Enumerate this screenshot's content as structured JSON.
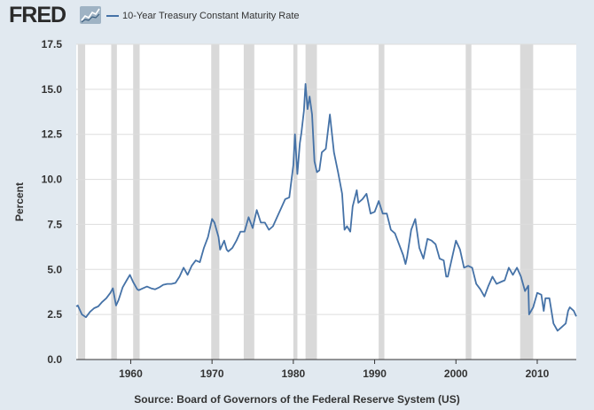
{
  "header": {
    "logo_text": "FRED",
    "logo_icon": "fred-chart-logo-icon",
    "legend_label": "10-Year Treasury Constant Maturity Rate"
  },
  "footer": {
    "source": "Source: Board of Governors of the Federal Reserve System (US)"
  },
  "colors": {
    "line": "#4572a7",
    "recession": "#d9d9d9",
    "plot_bg": "#ffffff",
    "page_bg": "#e1e9f0",
    "grid": "#dddddd"
  },
  "chart_data": {
    "type": "line",
    "title": "10-Year Treasury Constant Maturity Rate",
    "xlabel": "",
    "ylabel": "Percent",
    "xlim": [
      1953.3,
      2014.8
    ],
    "ylim": [
      0,
      17.5
    ],
    "x_ticks": [
      1960,
      1970,
      1980,
      1990,
      2000,
      2010
    ],
    "y_ticks": [
      0.0,
      2.5,
      5.0,
      7.5,
      10.0,
      12.5,
      15.0,
      17.5
    ],
    "y_tick_labels": [
      "0.0",
      "2.5",
      "5.0",
      "7.5",
      "10.0",
      "12.5",
      "15.0",
      "17.5"
    ],
    "grid": "horizontal",
    "legend": "top-left",
    "recessions": [
      [
        1953.5,
        1954.4
      ],
      [
        1957.6,
        1958.3
      ],
      [
        1960.3,
        1961.1
      ],
      [
        1969.9,
        1970.9
      ],
      [
        1973.9,
        1975.2
      ],
      [
        1980.0,
        1980.5
      ],
      [
        1981.5,
        1982.9
      ],
      [
        1990.5,
        1991.2
      ],
      [
        2001.2,
        2001.9
      ],
      [
        2007.9,
        2009.5
      ]
    ],
    "series": [
      {
        "name": "10-Year Treasury Constant Maturity Rate",
        "x": [
          1953.3,
          1953.5,
          1954.0,
          1954.5,
          1955.0,
          1955.5,
          1956.0,
          1956.5,
          1957.0,
          1957.5,
          1957.8,
          1958.2,
          1958.5,
          1959.0,
          1959.5,
          1959.9,
          1960.3,
          1960.8,
          1961.0,
          1961.5,
          1962.0,
          1962.5,
          1963.0,
          1963.5,
          1964.0,
          1964.5,
          1965.0,
          1965.5,
          1966.0,
          1966.5,
          1967.0,
          1967.5,
          1968.0,
          1968.5,
          1969.0,
          1969.5,
          1970.0,
          1970.3,
          1970.8,
          1971.0,
          1971.5,
          1971.8,
          1972.0,
          1972.5,
          1973.0,
          1973.5,
          1974.0,
          1974.5,
          1975.0,
          1975.5,
          1976.0,
          1976.5,
          1977.0,
          1977.5,
          1978.0,
          1978.5,
          1979.0,
          1979.5,
          1980.0,
          1980.2,
          1980.5,
          1980.8,
          1981.0,
          1981.3,
          1981.5,
          1981.75,
          1982.0,
          1982.3,
          1982.6,
          1982.9,
          1983.2,
          1983.5,
          1984.0,
          1984.5,
          1985.0,
          1985.5,
          1986.0,
          1986.3,
          1986.6,
          1987.0,
          1987.3,
          1987.8,
          1988.0,
          1988.5,
          1989.0,
          1989.5,
          1990.0,
          1990.5,
          1991.0,
          1991.5,
          1992.0,
          1992.5,
          1993.0,
          1993.5,
          1993.8,
          1994.0,
          1994.5,
          1995.0,
          1995.5,
          1996.0,
          1996.5,
          1997.0,
          1997.5,
          1998.0,
          1998.5,
          1998.8,
          1999.0,
          1999.5,
          2000.0,
          2000.5,
          2001.0,
          2001.5,
          2002.0,
          2002.5,
          2003.0,
          2003.5,
          2004.0,
          2004.5,
          2005.0,
          2005.5,
          2006.0,
          2006.5,
          2007.0,
          2007.5,
          2008.0,
          2008.5,
          2008.9,
          2009.0,
          2009.5,
          2010.0,
          2010.5,
          2010.8,
          2011.0,
          2011.5,
          2012.0,
          2012.5,
          2013.0,
          2013.5,
          2013.8,
          2014.0,
          2014.5,
          2014.8
        ],
        "values": [
          2.95,
          3.0,
          2.5,
          2.35,
          2.65,
          2.85,
          2.95,
          3.2,
          3.4,
          3.7,
          3.95,
          3.0,
          3.3,
          4.0,
          4.4,
          4.7,
          4.3,
          3.9,
          3.85,
          3.95,
          4.05,
          3.95,
          3.9,
          4.0,
          4.15,
          4.2,
          4.2,
          4.25,
          4.6,
          5.1,
          4.7,
          5.2,
          5.5,
          5.4,
          6.2,
          6.8,
          7.8,
          7.6,
          6.8,
          6.1,
          6.6,
          6.1,
          6.0,
          6.2,
          6.6,
          7.1,
          7.1,
          7.9,
          7.3,
          8.3,
          7.6,
          7.6,
          7.2,
          7.4,
          7.9,
          8.4,
          8.9,
          9.0,
          10.8,
          12.5,
          10.3,
          12.0,
          12.6,
          13.8,
          15.3,
          13.9,
          14.6,
          13.6,
          11.0,
          10.4,
          10.5,
          11.5,
          11.7,
          13.6,
          11.5,
          10.4,
          9.2,
          7.2,
          7.4,
          7.1,
          8.5,
          9.4,
          8.7,
          8.9,
          9.2,
          8.1,
          8.2,
          8.8,
          8.1,
          8.1,
          7.2,
          7.0,
          6.4,
          5.8,
          5.3,
          5.7,
          7.2,
          7.8,
          6.2,
          5.6,
          6.7,
          6.6,
          6.4,
          5.6,
          5.5,
          4.6,
          4.6,
          5.6,
          6.6,
          6.1,
          5.1,
          5.2,
          5.1,
          4.2,
          3.9,
          3.5,
          4.1,
          4.6,
          4.2,
          4.3,
          4.4,
          5.1,
          4.7,
          5.1,
          4.6,
          3.8,
          4.1,
          2.5,
          2.9,
          3.7,
          3.6,
          2.7,
          3.4,
          3.4,
          2.0,
          1.6,
          1.8,
          2.0,
          2.7,
          2.9,
          2.7,
          2.4
        ]
      }
    ]
  }
}
